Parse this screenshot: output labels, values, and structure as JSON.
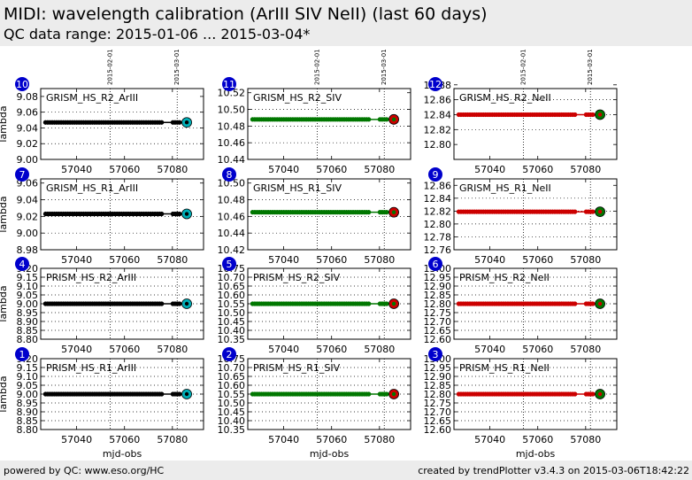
{
  "header": {
    "title": "MIDI: wavelength calibration (ArIII SIV NeII) (last 60 days)",
    "subtitle": "QC data range: 2015-01-06 ... 2015-03-04*"
  },
  "footer": {
    "left": "powered by QC: www.eso.org/HC",
    "right": "created by trendPlotter v3.4.3 on 2015-03-06T18:42:22"
  },
  "shared": {
    "xlabel": "mjd-obs",
    "ylabel": "lambda",
    "xticks": [
      57040,
      57060,
      57080
    ],
    "xlim": [
      57025,
      57093
    ],
    "date_markers": [
      {
        "mjd": 57054,
        "label": "2015-02-01"
      },
      {
        "mjd": 57082,
        "label": "2015-03-01"
      }
    ],
    "colors": {
      "ArIII": "#000000",
      "SIV": "#007700",
      "NeII": "#cc0000",
      "ArIII_last_marker": "#00b0b8",
      "SIV_last_marker": "#cc0000",
      "NeII_last_marker": "#007700",
      "badge": "#0000cc"
    }
  },
  "chart_data": [
    {
      "id": "10",
      "type": "scatter",
      "label": "GRISM_HS_R2_ArIII",
      "series": "ArIII",
      "ylim": [
        9.0,
        9.09
      ],
      "yticks": [
        "9.00",
        "9.02",
        "9.04",
        "9.06",
        "9.08"
      ],
      "value": 9.047,
      "last_value": 9.047,
      "x_start": 57027,
      "x_end": 57083,
      "last_x": 57086
    },
    {
      "id": "11",
      "type": "scatter",
      "label": "GRISM_HS_R2_SIV",
      "series": "SIV",
      "ylim": [
        10.44,
        10.525
      ],
      "yticks": [
        "10.44",
        "10.46",
        "10.48",
        "10.50",
        "10.52"
      ],
      "value": 10.488,
      "last_value": 10.488,
      "x_start": 57027,
      "x_end": 57083,
      "last_x": 57086
    },
    {
      "id": "12",
      "type": "scatter",
      "label": "GRISM_HS_R2_NeII",
      "series": "NeII",
      "ylim": [
        12.78,
        12.875
      ],
      "yticks": [
        "12.80",
        "12.82",
        "12.84",
        "12.86",
        "12.88"
      ],
      "value": 12.84,
      "last_value": 12.84,
      "x_start": 57027,
      "x_end": 57083,
      "last_x": 57086
    },
    {
      "id": "7",
      "type": "scatter",
      "label": "GRISM_HS_R1_ArIII",
      "series": "ArIII",
      "ylim": [
        8.98,
        9.065
      ],
      "yticks": [
        "8.98",
        "9.00",
        "9.02",
        "9.04",
        "9.06"
      ],
      "value": 9.023,
      "last_value": 9.023,
      "x_start": 57027,
      "x_end": 57083,
      "last_x": 57086
    },
    {
      "id": "8",
      "type": "scatter",
      "label": "GRISM_HS_R1_SIV",
      "series": "SIV",
      "ylim": [
        10.42,
        10.505
      ],
      "yticks": [
        "10.42",
        "10.44",
        "10.46",
        "10.48",
        "10.50"
      ],
      "value": 10.465,
      "last_value": 10.465,
      "x_start": 57027,
      "x_end": 57083,
      "last_x": 57086
    },
    {
      "id": "9",
      "type": "scatter",
      "label": "GRISM_HS_R1_NeII",
      "series": "NeII",
      "ylim": [
        12.76,
        12.87
      ],
      "yticks": [
        "12.76",
        "12.78",
        "12.80",
        "12.82",
        "12.84",
        "12.86"
      ],
      "value": 12.819,
      "last_value": 12.819,
      "x_start": 57027,
      "x_end": 57083,
      "last_x": 57086
    },
    {
      "id": "4",
      "type": "scatter",
      "label": "PRISM_HS_R2_ArIII",
      "series": "ArIII",
      "ylim": [
        8.8,
        9.2
      ],
      "yticks": [
        "8.80",
        "8.85",
        "8.90",
        "8.95",
        "9.00",
        "9.05",
        "9.10",
        "9.15",
        "9.20"
      ],
      "value": 9.0,
      "last_value": 9.0,
      "x_start": 57027,
      "x_end": 57083,
      "last_x": 57086
    },
    {
      "id": "5",
      "type": "scatter",
      "label": "PRISM_HS_R2_SIV",
      "series": "SIV",
      "ylim": [
        10.35,
        10.75
      ],
      "yticks": [
        "10.35",
        "10.40",
        "10.45",
        "10.50",
        "10.55",
        "10.60",
        "10.65",
        "10.70",
        "10.75"
      ],
      "value": 10.55,
      "last_value": 10.55,
      "x_start": 57027,
      "x_end": 57083,
      "last_x": 57086
    },
    {
      "id": "6",
      "type": "scatter",
      "label": "PRISM_HS_R2_NeII",
      "series": "NeII",
      "ylim": [
        12.6,
        13.0
      ],
      "yticks": [
        "12.60",
        "12.65",
        "12.70",
        "12.75",
        "12.80",
        "12.85",
        "12.90",
        "12.95",
        "13.00"
      ],
      "value": 12.8,
      "last_value": 12.8,
      "x_start": 57027,
      "x_end": 57083,
      "last_x": 57086
    },
    {
      "id": "1",
      "type": "scatter",
      "label": "PRISM_HS_R1_ArIII",
      "series": "ArIII",
      "ylim": [
        8.8,
        9.2
      ],
      "yticks": [
        "8.80",
        "8.85",
        "8.90",
        "8.95",
        "9.00",
        "9.05",
        "9.10",
        "9.15",
        "9.20"
      ],
      "value": 9.0,
      "last_value": 9.0,
      "x_start": 57027,
      "x_end": 57083,
      "last_x": 57086
    },
    {
      "id": "2",
      "type": "scatter",
      "label": "PRISM_HS_R1_SIV",
      "series": "SIV",
      "ylim": [
        10.35,
        10.75
      ],
      "yticks": [
        "10.35",
        "10.40",
        "10.45",
        "10.50",
        "10.55",
        "10.60",
        "10.65",
        "10.70",
        "10.75"
      ],
      "value": 10.55,
      "last_value": 10.55,
      "x_start": 57027,
      "x_end": 57083,
      "last_x": 57086
    },
    {
      "id": "3",
      "type": "scatter",
      "label": "PRISM_HS_R1_NeII",
      "series": "NeII",
      "ylim": [
        12.6,
        13.0
      ],
      "yticks": [
        "12.60",
        "12.65",
        "12.70",
        "12.75",
        "12.80",
        "12.85",
        "12.90",
        "12.95",
        "13.00"
      ],
      "value": 12.8,
      "last_value": 12.8,
      "x_start": 57027,
      "x_end": 57083,
      "last_x": 57086
    }
  ]
}
